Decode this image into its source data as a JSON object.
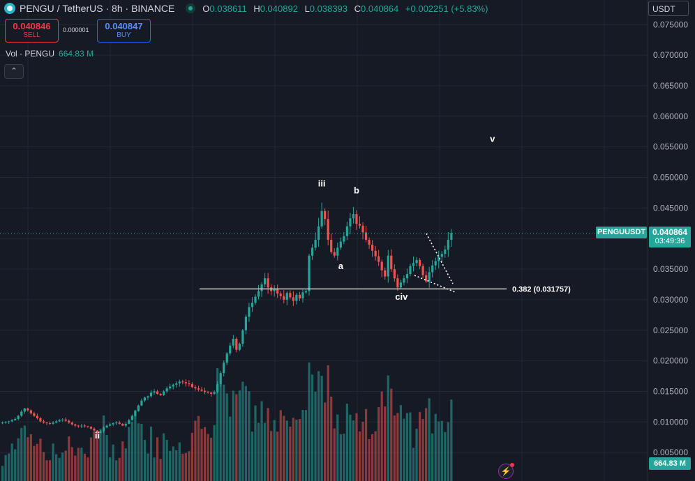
{
  "header": {
    "symbol": "PENGU",
    "separator": "/",
    "quote": "TetherUS",
    "interval": "8h",
    "exchange": "BINANCE",
    "ohlc": {
      "o_label": "O",
      "o": "0.038611",
      "h_label": "H",
      "h": "0.040892",
      "l_label": "L",
      "l": "0.038393",
      "c_label": "C",
      "c": "0.040864",
      "change": "+0.002251 (+5.83%)"
    }
  },
  "trade": {
    "sell_price": "0.040846",
    "sell_label": "SELL",
    "spread": "0.000001",
    "buy_price": "0.040847",
    "buy_label": "BUY"
  },
  "volume_legend": {
    "label": "Vol · PENGU",
    "value": "664.83 M"
  },
  "collapse_icon": "chevron-up-icon",
  "currency_button": "USDT",
  "last_price": {
    "symbol_tag": "PENGUUSDT",
    "price": "0.040864",
    "countdown": "03:49:36",
    "volume": "664.83 M"
  },
  "colors": {
    "background": "#161a25",
    "up": "#26a69a",
    "down": "#ef5350",
    "text": "#d1d4dc",
    "grid": "#232733"
  },
  "chart_data": {
    "type": "candlestick",
    "title": "",
    "xlabel": "",
    "ylabel": "",
    "ylim": [
      0,
      0.0775
    ],
    "y_ticks": [
      "0.075000",
      "0.070000",
      "0.065000",
      "0.060000",
      "0.055000",
      "0.050000",
      "0.045000",
      "0.040000",
      "0.035000",
      "0.030000",
      "0.025000",
      "0.020000",
      "0.015000",
      "0.010000",
      "0.005000"
    ],
    "grid": true,
    "close_series": [
      0.0099,
      0.01,
      0.0101,
      0.0103,
      0.0105,
      0.011,
      0.0117,
      0.0122,
      0.0119,
      0.0114,
      0.011,
      0.0106,
      0.0101,
      0.0099,
      0.0098,
      0.0097,
      0.0099,
      0.0101,
      0.0103,
      0.0104,
      0.0102,
      0.0099,
      0.0096,
      0.0094,
      0.0093,
      0.0094,
      0.0093,
      0.0092,
      0.0089,
      0.0086,
      0.0082,
      0.0085,
      0.0091,
      0.0094,
      0.0096,
      0.0098,
      0.0099,
      0.0097,
      0.0094,
      0.0097,
      0.0103,
      0.011,
      0.0118,
      0.0127,
      0.0135,
      0.014,
      0.0142,
      0.0148,
      0.015,
      0.0146,
      0.0144,
      0.015,
      0.0155,
      0.0158,
      0.0161,
      0.0163,
      0.0166,
      0.0165,
      0.0163,
      0.0162,
      0.0157,
      0.0155,
      0.0153,
      0.0151,
      0.0149,
      0.0148,
      0.0146,
      0.0149,
      0.0162,
      0.018,
      0.0197,
      0.0212,
      0.0225,
      0.0236,
      0.0218,
      0.0228,
      0.025,
      0.0272,
      0.0288,
      0.0295,
      0.0305,
      0.0314,
      0.0325,
      0.0335,
      0.032,
      0.0314,
      0.0318,
      0.031,
      0.0306,
      0.03,
      0.0311,
      0.0304,
      0.0298,
      0.0308,
      0.0302,
      0.0312,
      0.0314,
      0.0372,
      0.0385,
      0.0398,
      0.042,
      0.0445,
      0.0432,
      0.0398,
      0.0378,
      0.0372,
      0.0385,
      0.0395,
      0.0404,
      0.042,
      0.0433,
      0.044,
      0.0424,
      0.0421,
      0.041,
      0.0398,
      0.039,
      0.038,
      0.0371,
      0.0362,
      0.0348,
      0.0338,
      0.0372,
      0.035,
      0.0335,
      0.032,
      0.0328,
      0.0335,
      0.0342,
      0.0355,
      0.036,
      0.0365,
      0.0355,
      0.034,
      0.033,
      0.0345,
      0.0356,
      0.0363,
      0.037,
      0.0375,
      0.0382,
      0.0398,
      0.0409
    ],
    "annotations": [
      {
        "text": "ii",
        "x_index": 30,
        "price": 0.0073
      },
      {
        "text": "iii",
        "x_index": 101,
        "price": 0.0485
      },
      {
        "text": "b",
        "x_index": 112,
        "price": 0.0474
      },
      {
        "text": "a",
        "x_index": 107,
        "price": 0.035
      },
      {
        "text": "c",
        "x_index": 125,
        "price": 0.03
      },
      {
        "text": "iv",
        "x_index": 127,
        "price": 0.03
      },
      {
        "text": "v",
        "x_index": 155,
        "price": 0.0558
      }
    ],
    "fib_level": {
      "label": "0.382 (0.031757)",
      "price": 0.031757
    },
    "last_price": 0.040864
  }
}
